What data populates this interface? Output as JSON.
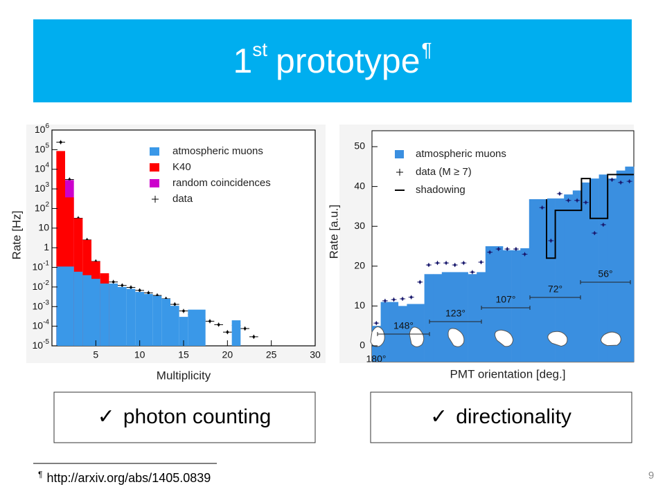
{
  "header": {
    "title": "1",
    "title_sup": "st",
    "title_main": "prototype",
    "title_mark": "¶"
  },
  "chart_data": [
    {
      "type": "bar",
      "log_y": true,
      "legend": "upper right",
      "xlabel": "Multiplicity",
      "ylabel": "Rate [Hz]",
      "x": [
        1,
        2,
        3,
        4,
        5,
        6,
        7,
        8,
        9,
        10,
        11,
        12,
        13,
        14,
        15,
        16,
        17,
        18,
        19,
        20,
        21,
        22,
        23
      ],
      "xlim": [
        0,
        30
      ],
      "xticks": [
        5,
        10,
        15,
        20,
        25,
        30
      ],
      "ylim": [
        1e-05,
        1000000
      ],
      "yticks": [
        {
          "value": 1e-05,
          "label": "10",
          "exp": "-5"
        },
        {
          "value": 0.0001,
          "label": "10",
          "exp": "-4"
        },
        {
          "value": 0.001,
          "label": "10",
          "exp": "-3"
        },
        {
          "value": 0.01,
          "label": "10",
          "exp": "-2"
        },
        {
          "value": 0.1,
          "label": "10",
          "exp": "-1"
        },
        1,
        10,
        {
          "value": 100,
          "label": "10",
          "exp": "2"
        },
        {
          "value": 1000,
          "label": "10",
          "exp": "3"
        },
        {
          "value": 10000,
          "label": "10",
          "exp": "4"
        },
        {
          "value": 100000,
          "label": "10",
          "exp": "5"
        },
        {
          "value": 1000000,
          "label": "10",
          "exp": "6"
        }
      ],
      "series": [
        {
          "name": "atmospheric muons",
          "kind": "bar",
          "color": "#3a98e8",
          "values": [
            0.11,
            0.11,
            0.06,
            0.04,
            0.026,
            0.015,
            0.015,
            0.01,
            0.008,
            0.0056,
            0.0044,
            0.0035,
            0.0025,
            0.0011,
            0.0003,
            0.0007,
            0.0007,
            null,
            null,
            null,
            0.0002,
            null,
            null
          ]
        },
        {
          "name": "K40",
          "kind": "bar",
          "color": "#ff0000",
          "values": [
            85000,
            370,
            32,
            2.5,
            0.2,
            0.05,
            0.012,
            null,
            null,
            null,
            null,
            null,
            null,
            null,
            null,
            null,
            null,
            null,
            null,
            null,
            null,
            null,
            null
          ]
        },
        {
          "name": "random coincidences",
          "kind": "bar",
          "color": "#cc00cc",
          "values": [
            null,
            2800,
            null,
            null,
            null,
            null,
            null,
            null,
            null,
            null,
            null,
            null,
            null,
            null,
            null,
            null,
            null,
            null,
            null,
            null,
            null,
            null,
            null
          ]
        },
        {
          "name": "data",
          "kind": "cross",
          "color": "#000000",
          "values": [
            240000,
            3000,
            32,
            2.5,
            0.2,
            0.033,
            0.018,
            0.012,
            0.0095,
            0.0067,
            0.005,
            0.0037,
            0.0025,
            0.0013,
            0.0006,
            0.0004,
            0.00022,
            0.00018,
            0.00012,
            5e-05,
            0.00011,
            7.6e-05,
            2.9e-05
          ]
        }
      ]
    },
    {
      "type": "bar",
      "legend": "upper left",
      "xlabel": "PMT orientation [deg.]",
      "ylabel": "Rate [a.u.]",
      "categories": [
        null,
        null,
        null,
        null,
        null,
        null,
        null,
        null,
        null,
        null,
        null,
        null,
        null,
        null,
        null,
        null,
        null,
        null,
        null,
        null,
        null,
        null,
        null,
        null,
        null,
        null,
        null,
        null,
        null,
        null
      ],
      "ylim": [
        -4,
        54
      ],
      "yticks": [
        0,
        10,
        20,
        30,
        40,
        50
      ],
      "annotations": [
        "148°",
        "123°",
        "107°",
        "72°",
        "56°",
        "180°"
      ],
      "series": [
        {
          "name": "atmospheric muons",
          "kind": "bar",
          "color": "#3a8fe0",
          "values": [
            5,
            11,
            11,
            10,
            10.5,
            10.5,
            18,
            18,
            18.5,
            18.5,
            18.5,
            18,
            18.5,
            25,
            25,
            24,
            24,
            24.5,
            39,
            38,
            37,
            37,
            38,
            39,
            41,
            42,
            43,
            42,
            44,
            45
          ]
        },
        {
          "name": "data (M ≥ 7)",
          "kind": "cross",
          "color": "#1a1a6e",
          "values": [
            5.7,
            11.3,
            11.6,
            11.8,
            12.2,
            16,
            20.3,
            20.8,
            20.8,
            20.3,
            20.8,
            18.5,
            21,
            23.5,
            24.3,
            24.3,
            24.3,
            23,
            37.8,
            34.7,
            26.4,
            38.2,
            36.5,
            36.5,
            36,
            28.3,
            30.4,
            41.7,
            41,
            41.3
          ]
        },
        {
          "name": "shadowing",
          "kind": "step",
          "color": "#000000",
          "values": [
            null,
            null,
            null,
            null,
            null,
            null,
            null,
            null,
            null,
            null,
            null,
            null,
            null,
            null,
            null,
            null,
            null,
            null,
            37,
            38,
            22,
            34,
            34,
            34,
            42,
            32,
            32,
            43,
            43,
            43
          ]
        }
      ]
    }
  ],
  "boxes": {
    "check": "✓",
    "items": [
      "photon counting",
      "directionality"
    ]
  },
  "footnote": {
    "mark": "¶",
    "text": "http://arxiv.org/abs/1405.0839"
  },
  "page_number": 9
}
